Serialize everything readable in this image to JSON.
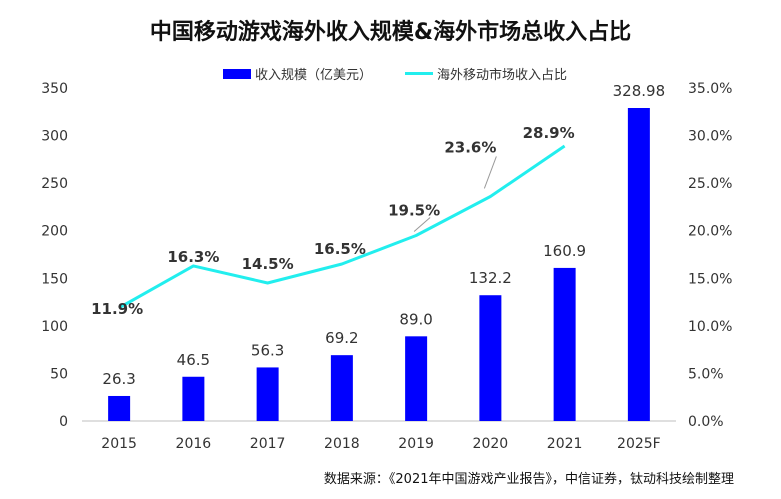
{
  "chart_data": {
    "type": "bar",
    "title": "中国移动游戏海外收入规模&海外市场总收入占比",
    "categories": [
      "2015",
      "2016",
      "2017",
      "2018",
      "2019",
      "2020",
      "2021",
      "2025F"
    ],
    "series": [
      {
        "name": "收入规模（亿美元）",
        "type": "bar",
        "axis": "left",
        "color": "#0000ff",
        "values": [
          26.3,
          46.5,
          56.3,
          69.2,
          89.0,
          132.2,
          160.9,
          328.98
        ],
        "labels": [
          "26.3",
          "46.5",
          "56.3",
          "69.2",
          "89.0",
          "132.2",
          "160.9",
          "328.98"
        ]
      },
      {
        "name": "海外移动市场收入占比",
        "type": "line",
        "axis": "right",
        "color": "#22eeee",
        "values": [
          11.9,
          16.3,
          14.5,
          16.5,
          19.5,
          23.6,
          28.9,
          null
        ],
        "labels": [
          "11.9%",
          "16.3%",
          "14.5%",
          "16.5%",
          "19.5%",
          "23.6%",
          "28.9%",
          null
        ]
      }
    ],
    "y_left": {
      "min": 0,
      "max": 350,
      "ticks": [
        "0",
        "50",
        "100",
        "150",
        "200",
        "250",
        "300",
        "350"
      ]
    },
    "y_right": {
      "min": 0,
      "max": 35,
      "ticks": [
        "0.0%",
        "5.0%",
        "10.0%",
        "15.0%",
        "20.0%",
        "25.0%",
        "30.0%",
        "35.0%"
      ]
    },
    "grid": false,
    "legend_position": "top"
  },
  "source": "数据来源：《2021年中国游戏产业报告》，中信证券，钛动科技绘制整理"
}
